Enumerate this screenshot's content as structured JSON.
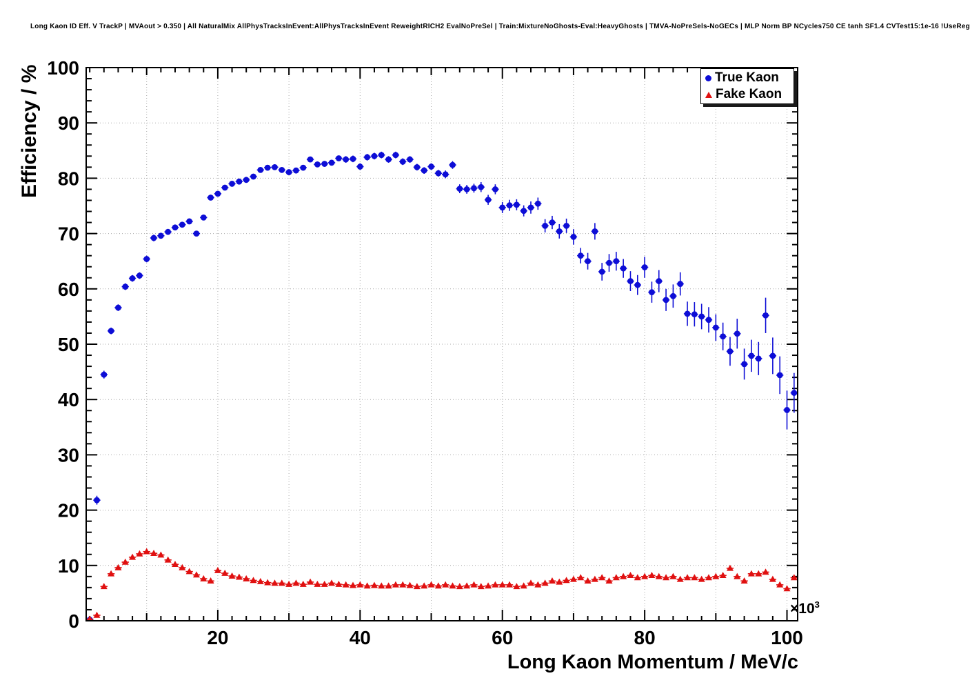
{
  "chart_data": {
    "type": "scatter",
    "title": "Long Kaon ID Eff. V TrackP | MVAout > 0.350 | All NaturalMix AllPhysTracksInEvent:AllPhysTracksInEvent ReweightRICH2 EvalNoPreSel | Train:MixtureNoGhosts-Eval:HeavyGhosts | TMVA-NoPreSels-NoGECs | MLP Norm BP NCycles750 CE tanh SF1.4 CVTest15:1e-16 !UseReg",
    "xlabel": "Long Kaon Momentum / MeV/c",
    "ylabel": "Efficiency / %",
    "x_exponent": {
      "base": "×10",
      "power": "3"
    },
    "x_units_note": "x values in units of 10^3 MeV/c as indicated by axis multiplier",
    "xlim": [
      1.5,
      101.5
    ],
    "ylim": [
      0,
      100
    ],
    "x_tick_labels": [
      20,
      40,
      60,
      80,
      100
    ],
    "y_tick_labels": [
      0,
      10,
      20,
      30,
      40,
      50,
      60,
      70,
      80,
      90,
      100
    ],
    "grid": true,
    "grid_color": "#a8a8a8",
    "legend_position": "top-right",
    "x": [
      2,
      3,
      4,
      5,
      6,
      7,
      8,
      9,
      10,
      11,
      12,
      13,
      14,
      15,
      16,
      17,
      18,
      19,
      20,
      21,
      22,
      23,
      24,
      25,
      26,
      27,
      28,
      29,
      30,
      31,
      32,
      33,
      34,
      35,
      36,
      37,
      38,
      39,
      40,
      41,
      42,
      43,
      44,
      45,
      46,
      47,
      48,
      49,
      50,
      51,
      52,
      53,
      54,
      55,
      56,
      57,
      58,
      59,
      60,
      61,
      62,
      63,
      64,
      65,
      66,
      67,
      68,
      69,
      70,
      71,
      72,
      73,
      74,
      75,
      76,
      77,
      78,
      79,
      80,
      81,
      82,
      83,
      84,
      85,
      86,
      87,
      88,
      89,
      90,
      91,
      92,
      93,
      94,
      95,
      96,
      97,
      98,
      99,
      100,
      101
    ],
    "series": [
      {
        "name": "True Kaon",
        "marker": "circle",
        "color": "#0d0dd6",
        "y": [
          0.2,
          21.8,
          44.5,
          52.4,
          56.6,
          60.4,
          61.9,
          62.4,
          65.4,
          69.2,
          69.6,
          70.3,
          71.1,
          71.6,
          72.2,
          70.0,
          72.9,
          76.5,
          77.2,
          78.3,
          79.0,
          79.4,
          79.7,
          80.3,
          81.5,
          81.9,
          82.0,
          81.5,
          81.1,
          81.4,
          81.9,
          83.4,
          82.5,
          82.6,
          82.8,
          83.6,
          83.4,
          83.5,
          82.1,
          83.8,
          84.0,
          84.2,
          83.4,
          84.2,
          83.0,
          83.4,
          82.0,
          81.4,
          82.1,
          80.9,
          80.7,
          82.4,
          78.1,
          78.0,
          78.2,
          78.4,
          76.1,
          78.0,
          74.7,
          75.1,
          75.2,
          74.1,
          74.7,
          75.4,
          71.4,
          72.0,
          70.4,
          71.4,
          69.4,
          66.0,
          65.0,
          70.4,
          63.1,
          64.7,
          65.0,
          63.7,
          61.4,
          60.7,
          63.9,
          59.4,
          61.4,
          58.0,
          58.7,
          60.9,
          55.5,
          55.4,
          55.0,
          54.4,
          53.0,
          51.4,
          48.7,
          51.9,
          46.4,
          47.9,
          47.4,
          55.2,
          47.9,
          44.4,
          38.1,
          41.2
        ],
        "yerr": [
          0.4,
          0.8,
          0.7,
          0.6,
          0.6,
          0.6,
          0.6,
          0.6,
          0.6,
          0.6,
          0.5,
          0.5,
          0.5,
          0.5,
          0.5,
          0.5,
          0.5,
          0.5,
          0.5,
          0.5,
          0.5,
          0.5,
          0.5,
          0.5,
          0.5,
          0.5,
          0.5,
          0.5,
          0.5,
          0.5,
          0.5,
          0.5,
          0.5,
          0.5,
          0.5,
          0.5,
          0.6,
          0.6,
          0.6,
          0.6,
          0.6,
          0.6,
          0.6,
          0.6,
          0.6,
          0.6,
          0.6,
          0.6,
          0.6,
          0.6,
          0.7,
          0.7,
          0.8,
          0.8,
          0.8,
          0.9,
          0.9,
          0.9,
          1.0,
          1.0,
          1.0,
          1.0,
          1.1,
          1.1,
          1.2,
          1.2,
          1.3,
          1.3,
          1.4,
          1.4,
          1.5,
          1.5,
          1.6,
          1.6,
          1.7,
          1.7,
          1.8,
          1.8,
          1.9,
          1.9,
          2.0,
          2.0,
          2.1,
          2.1,
          2.2,
          2.2,
          2.3,
          2.3,
          2.4,
          2.5,
          2.6,
          2.7,
          2.8,
          2.9,
          3.0,
          3.2,
          3.3,
          3.4,
          3.5,
          3.6
        ]
      },
      {
        "name": "Fake Kaon",
        "marker": "triangle",
        "color": "#e01010",
        "y": [
          0.3,
          1.0,
          6.2,
          8.5,
          9.6,
          10.6,
          11.5,
          12.1,
          12.5,
          12.2,
          11.9,
          11.0,
          10.2,
          9.6,
          8.9,
          8.3,
          7.6,
          7.2,
          9.1,
          8.6,
          8.1,
          7.9,
          7.6,
          7.3,
          7.1,
          6.9,
          6.8,
          6.8,
          6.6,
          6.8,
          6.6,
          7.0,
          6.6,
          6.6,
          6.8,
          6.6,
          6.5,
          6.4,
          6.5,
          6.3,
          6.4,
          6.3,
          6.3,
          6.5,
          6.5,
          6.4,
          6.2,
          6.3,
          6.5,
          6.3,
          6.5,
          6.3,
          6.2,
          6.3,
          6.5,
          6.2,
          6.3,
          6.5,
          6.5,
          6.5,
          6.2,
          6.3,
          6.8,
          6.5,
          6.8,
          7.2,
          7.0,
          7.3,
          7.5,
          7.8,
          7.2,
          7.5,
          7.8,
          7.2,
          7.8,
          8.0,
          8.2,
          7.8,
          8.0,
          8.2,
          8.0,
          7.8,
          8.0,
          7.5,
          7.8,
          7.8,
          7.5,
          7.8,
          8.0,
          8.2,
          9.5,
          8.0,
          7.2,
          8.5,
          8.5,
          8.8,
          7.5,
          6.5,
          5.8,
          7.8
        ],
        "yerr": 0.3
      }
    ]
  }
}
